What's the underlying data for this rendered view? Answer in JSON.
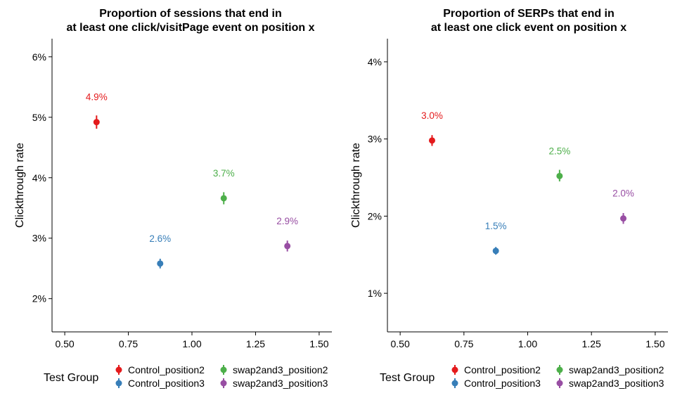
{
  "colors": {
    "Control_position2": "#E41A1C",
    "Control_position3": "#377EB8",
    "swap2and3_position2": "#4DAF4A",
    "swap2and3_position3": "#984EA3"
  },
  "legend": {
    "title": "Test Group",
    "items": [
      "Control_position2",
      "swap2and3_position2",
      "Control_position3",
      "swap2and3_position3"
    ]
  },
  "chart_data": [
    {
      "type": "scatter",
      "title": [
        "Proportion of sessions that end in",
        "at least one click/visitPage event on position x"
      ],
      "xlabel": "",
      "ylabel": "Clickthrough rate",
      "xlim": [
        0.45,
        1.55
      ],
      "ylim": [
        1.45,
        6.3
      ],
      "xticks": [
        0.5,
        0.75,
        1.0,
        1.25,
        1.5
      ],
      "xtick_labels": [
        "0.50",
        "0.75",
        "1.00",
        "1.25",
        "1.50"
      ],
      "yticks": [
        2,
        3,
        4,
        5,
        6
      ],
      "ytick_labels": [
        "2%",
        "3%",
        "4%",
        "5%",
        "6%"
      ],
      "points": [
        {
          "group": "Control_position2",
          "x": 0.625,
          "y": 4.92,
          "low": 4.81,
          "high": 5.03,
          "label": "4.9%"
        },
        {
          "group": "Control_position3",
          "x": 0.875,
          "y": 2.58,
          "low": 2.5,
          "high": 2.66,
          "label": "2.6%"
        },
        {
          "group": "swap2and3_position2",
          "x": 1.125,
          "y": 3.66,
          "low": 3.56,
          "high": 3.76,
          "label": "3.7%"
        },
        {
          "group": "swap2and3_position3",
          "x": 1.375,
          "y": 2.87,
          "low": 2.78,
          "high": 2.96,
          "label": "2.9%"
        }
      ],
      "grid": false,
      "legend_position": "bottom"
    },
    {
      "type": "scatter",
      "title": [
        "Proportion of SERPs that end in",
        "at least one click event on position x"
      ],
      "xlabel": "",
      "ylabel": "Clickthrough rate",
      "xlim": [
        0.45,
        1.55
      ],
      "ylim": [
        0.5,
        4.3
      ],
      "xticks": [
        0.5,
        0.75,
        1.0,
        1.25,
        1.5
      ],
      "xtick_labels": [
        "0.50",
        "0.75",
        "1.00",
        "1.25",
        "1.50"
      ],
      "yticks": [
        1,
        2,
        3,
        4
      ],
      "ytick_labels": [
        "1%",
        "2%",
        "3%",
        "4%"
      ],
      "points": [
        {
          "group": "Control_position2",
          "x": 0.625,
          "y": 2.98,
          "low": 2.91,
          "high": 3.05,
          "label": "3.0%"
        },
        {
          "group": "Control_position3",
          "x": 0.875,
          "y": 1.55,
          "low": 1.5,
          "high": 1.6,
          "label": "1.5%"
        },
        {
          "group": "swap2and3_position2",
          "x": 1.125,
          "y": 2.52,
          "low": 2.45,
          "high": 2.6,
          "label": "2.5%"
        },
        {
          "group": "swap2and3_position3",
          "x": 1.375,
          "y": 1.97,
          "low": 1.9,
          "high": 2.04,
          "label": "2.0%"
        }
      ],
      "grid": false,
      "legend_position": "bottom"
    }
  ]
}
